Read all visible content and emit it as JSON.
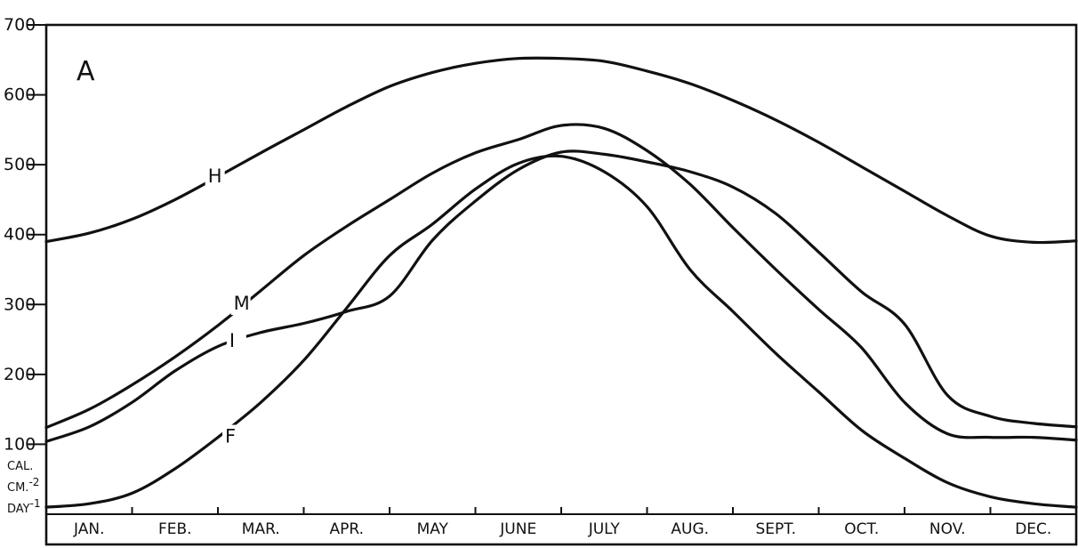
{
  "chart_data": {
    "type": "line",
    "panel_label": "A",
    "ylim": [
      0,
      700
    ],
    "y_ticks": [
      {
        "value": 700,
        "label": "700"
      },
      {
        "value": 600,
        "label": "600"
      },
      {
        "value": 500,
        "label": "500"
      },
      {
        "value": 400,
        "label": "400"
      },
      {
        "value": 300,
        "label": "300"
      },
      {
        "value": 200,
        "label": "200"
      },
      {
        "value": 100,
        "label": "100"
      }
    ],
    "y_unit": {
      "line1": "CAL.",
      "line2": "CM.",
      "line2_sup": "-2",
      "line3": "DAY",
      "line3_sup": "-1"
    },
    "xlim": [
      0,
      12
    ],
    "months": [
      "JAN.",
      "FEB.",
      "MAR.",
      "APR.",
      "MAY",
      "JUNE",
      "JULY",
      "AUG.",
      "SEPT.",
      "OCT.",
      "NOV.",
      "DEC."
    ],
    "grid": false,
    "legend": "none",
    "series": [
      {
        "name": "H",
        "points": [
          [
            0,
            390
          ],
          [
            0.5,
            402
          ],
          [
            1,
            422
          ],
          [
            1.5,
            450
          ],
          [
            2,
            483
          ],
          [
            2.5,
            517
          ],
          [
            3,
            550
          ],
          [
            3.5,
            583
          ],
          [
            4,
            612
          ],
          [
            4.5,
            632
          ],
          [
            5,
            645
          ],
          [
            5.5,
            652
          ],
          [
            6,
            652
          ],
          [
            6.5,
            648
          ],
          [
            7,
            634
          ],
          [
            7.5,
            616
          ],
          [
            8,
            592
          ],
          [
            8.5,
            564
          ],
          [
            9,
            532
          ],
          [
            9.5,
            497
          ],
          [
            10,
            462
          ],
          [
            10.5,
            427
          ],
          [
            11,
            398
          ],
          [
            11.5,
            389
          ],
          [
            12,
            391
          ]
        ]
      },
      {
        "name": "M",
        "points": [
          [
            0,
            124
          ],
          [
            0.5,
            150
          ],
          [
            1,
            185
          ],
          [
            1.5,
            225
          ],
          [
            2,
            270
          ],
          [
            2.5,
            320
          ],
          [
            3,
            370
          ],
          [
            3.5,
            412
          ],
          [
            4,
            450
          ],
          [
            4.5,
            488
          ],
          [
            5,
            517
          ],
          [
            5.5,
            536
          ],
          [
            6,
            556
          ],
          [
            6.5,
            552
          ],
          [
            7,
            520
          ],
          [
            7.5,
            472
          ],
          [
            8,
            410
          ],
          [
            8.5,
            350
          ],
          [
            9,
            293
          ],
          [
            9.5,
            238
          ],
          [
            10,
            160
          ],
          [
            10.5,
            115
          ],
          [
            11,
            110
          ],
          [
            11.5,
            110
          ],
          [
            12,
            106
          ]
        ]
      },
      {
        "name": "I",
        "points": [
          [
            0,
            104
          ],
          [
            0.5,
            125
          ],
          [
            1,
            160
          ],
          [
            1.5,
            205
          ],
          [
            2,
            240
          ],
          [
            2.5,
            260
          ],
          [
            3,
            273
          ],
          [
            3.5,
            290
          ],
          [
            4,
            312
          ],
          [
            4.5,
            392
          ],
          [
            5,
            448
          ],
          [
            5.5,
            493
          ],
          [
            6,
            518
          ],
          [
            6.5,
            515
          ],
          [
            7,
            504
          ],
          [
            7.5,
            490
          ],
          [
            8,
            468
          ],
          [
            8.5,
            430
          ],
          [
            9,
            375
          ],
          [
            9.5,
            318
          ],
          [
            10,
            272
          ],
          [
            10.5,
            170
          ],
          [
            11,
            140
          ],
          [
            11.5,
            130
          ],
          [
            12,
            125
          ]
        ]
      },
      {
        "name": "F",
        "points": [
          [
            0,
            10
          ],
          [
            0.5,
            15
          ],
          [
            1,
            30
          ],
          [
            1.5,
            65
          ],
          [
            2,
            110
          ],
          [
            2.5,
            160
          ],
          [
            3,
            220
          ],
          [
            3.5,
            295
          ],
          [
            4,
            370
          ],
          [
            4.5,
            415
          ],
          [
            5,
            465
          ],
          [
            5.5,
            502
          ],
          [
            6,
            512
          ],
          [
            6.5,
            490
          ],
          [
            7,
            440
          ],
          [
            7.5,
            350
          ],
          [
            8,
            290
          ],
          [
            8.5,
            230
          ],
          [
            9,
            175
          ],
          [
            9.5,
            120
          ],
          [
            10,
            80
          ],
          [
            10.5,
            45
          ],
          [
            11,
            25
          ],
          [
            11.5,
            15
          ],
          [
            12,
            10
          ]
        ]
      }
    ]
  }
}
